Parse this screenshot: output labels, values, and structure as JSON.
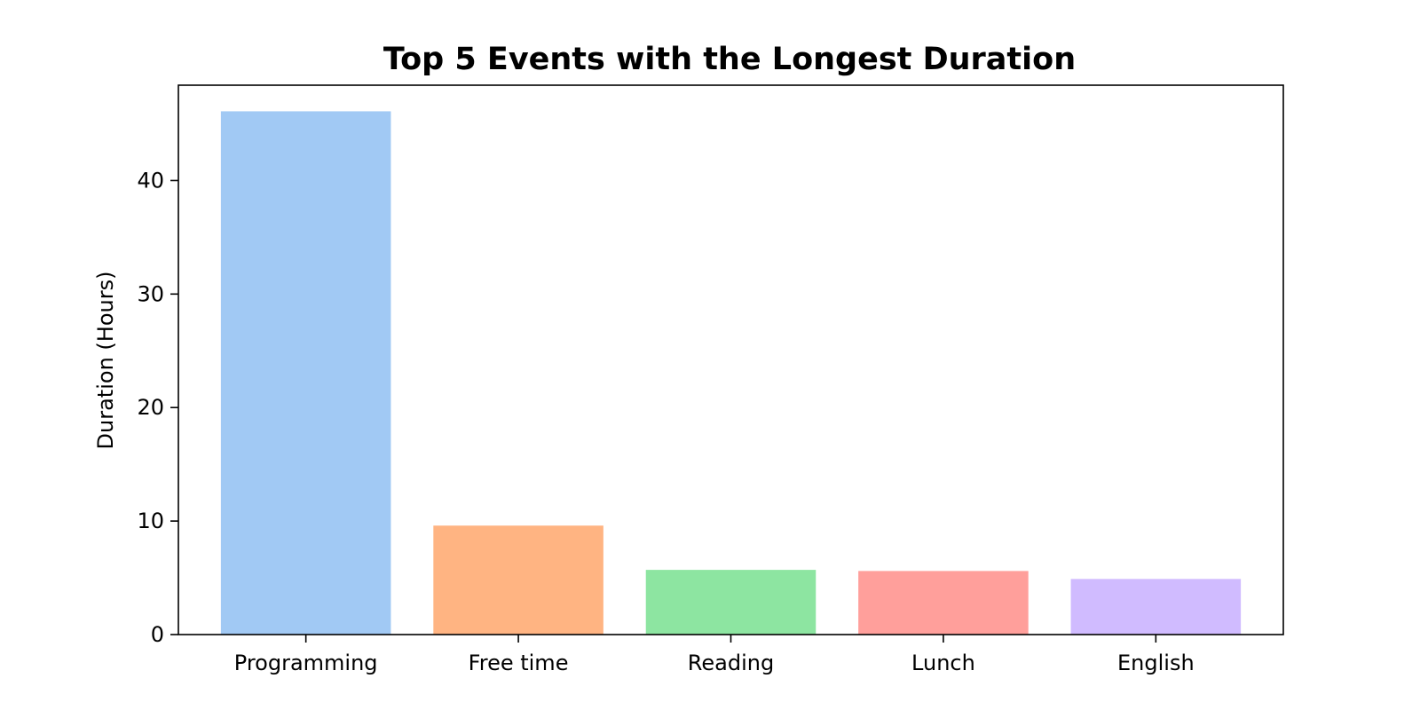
{
  "chart_data": {
    "type": "bar",
    "title": "Top 5 Events with the Longest Duration",
    "xlabel": "",
    "ylabel": "Duration (Hours)",
    "categories": [
      "Programming",
      "Free time",
      "Reading",
      "Lunch",
      "English"
    ],
    "values": [
      46.1,
      9.6,
      5.7,
      5.6,
      4.9
    ],
    "colors": [
      "#a1c9f4",
      "#ffb482",
      "#8de5a1",
      "#ff9f9b",
      "#d0bbff"
    ],
    "ylim": [
      0,
      48.4
    ],
    "yticks": [
      0,
      10,
      20,
      30,
      40
    ],
    "ytick_labels": [
      "0",
      "10",
      "20",
      "30",
      "40"
    ],
    "grid": false,
    "legend": "none"
  }
}
